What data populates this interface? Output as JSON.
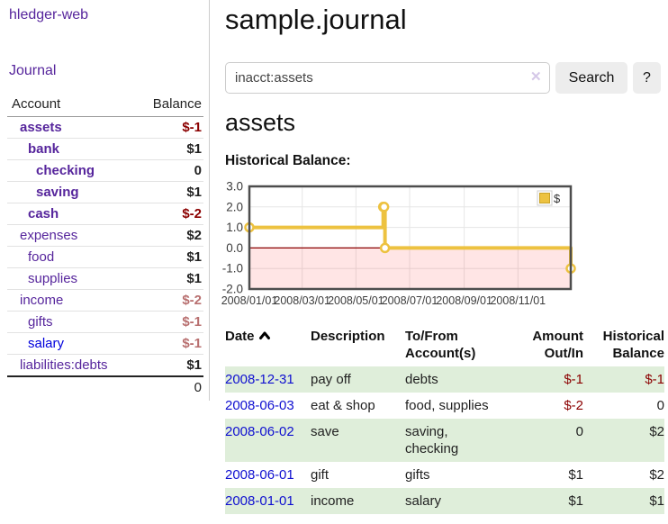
{
  "sidebar": {
    "app_title": "hledger-web",
    "nav": {
      "journal_label": "Journal"
    },
    "accounts_table": {
      "headers": {
        "account": "Account",
        "balance": "Balance"
      },
      "rows": [
        {
          "name": "assets",
          "balance": "$-1"
        },
        {
          "name": "bank",
          "balance": "$1"
        },
        {
          "name": "checking",
          "balance": "0"
        },
        {
          "name": "saving",
          "balance": "$1"
        },
        {
          "name": "cash",
          "balance": "$-2"
        },
        {
          "name": "expenses",
          "balance": "$2"
        },
        {
          "name": "food",
          "balance": "$1"
        },
        {
          "name": "supplies",
          "balance": "$1"
        },
        {
          "name": "income",
          "balance": "$-2"
        },
        {
          "name": "gifts",
          "balance": "$-1"
        },
        {
          "name": "salary",
          "balance": "$-1"
        },
        {
          "name": "liabilities:debts",
          "balance": "$1"
        }
      ],
      "total": "0"
    }
  },
  "main": {
    "title": "sample.journal",
    "search": {
      "value": "inacct:assets",
      "clear_icon": "✕",
      "button_label": "Search",
      "help_label": "?"
    },
    "account_heading": "assets"
  },
  "chart_data": {
    "type": "line",
    "title": "Historical Balance:",
    "step": true,
    "series": [
      {
        "name": "$",
        "x": [
          "2008-01-01",
          "2008-06-01",
          "2008-06-02",
          "2008-06-03",
          "2008-12-31"
        ],
        "values": [
          1,
          2,
          2,
          0,
          -1
        ]
      }
    ],
    "x_ticks": [
      "2008/01/01",
      "2008/03/01",
      "2008/05/01",
      "2008/07/01",
      "2008/09/01",
      "2008/11/01"
    ],
    "y_ticks": [
      3,
      2,
      1,
      0,
      -1,
      -2
    ],
    "ylim": [
      -2,
      3
    ],
    "xlim": [
      "2008-01-01",
      "2008-12-31"
    ],
    "grid": true,
    "legend_position": "top-right",
    "line_color": "#edc240",
    "line_color_dark": "#c9a227",
    "negative_region_color": "rgba(255,0,0,0.10)",
    "zero_line_color": "#8b0000",
    "xlabel": "",
    "ylabel": ""
  },
  "register": {
    "headers": {
      "date": "Date",
      "description": "Description",
      "tofrom": "To/From Account(s)",
      "amount": "Amount Out/In",
      "balance": "Historical Balance"
    },
    "rows": [
      {
        "date": "2008-12-31",
        "description": "pay off",
        "accounts": "debts",
        "amount": "$-1",
        "balance": "$-1"
      },
      {
        "date": "2008-06-03",
        "description": "eat & shop",
        "accounts": "food, supplies",
        "amount": "$-2",
        "balance": "0"
      },
      {
        "date": "2008-06-02",
        "description": "save",
        "accounts": "saving, checking",
        "amount": "0",
        "balance": "$2"
      },
      {
        "date": "2008-06-01",
        "description": "gift",
        "accounts": "gifts",
        "amount": "$1",
        "balance": "$2"
      },
      {
        "date": "2008-01-01",
        "description": "income",
        "accounts": "salary",
        "amount": "$1",
        "balance": "$1"
      }
    ]
  },
  "colors": {
    "link_purple": "#56259c",
    "link_blue": "#0000dd",
    "negative": "#8b0000",
    "negative_muted": "#b86f6f",
    "row_stripe_green": "#dfeeda",
    "button_bg": "#ededed"
  }
}
